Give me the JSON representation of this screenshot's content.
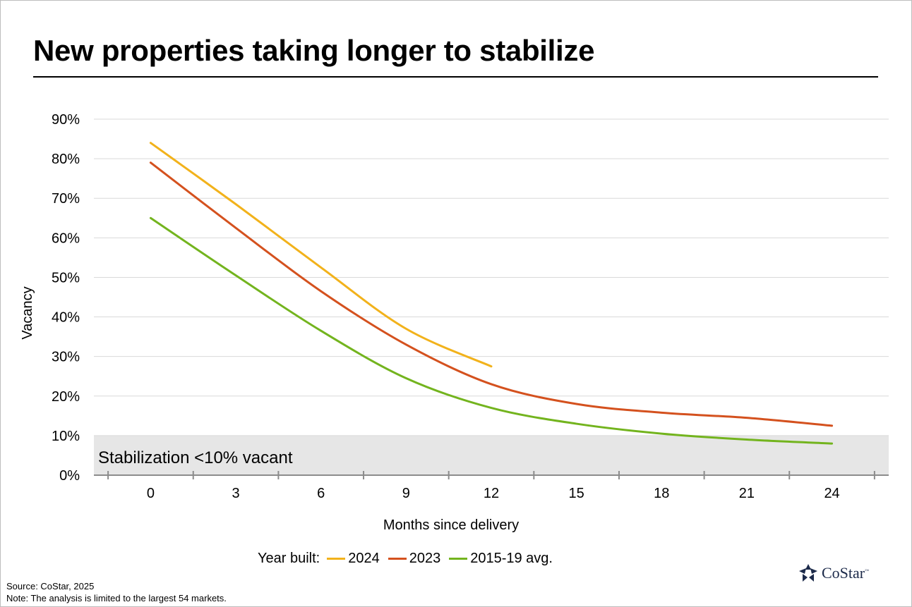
{
  "title": "New properties taking longer to stabilize",
  "legend_prefix": "Year built:",
  "source_line": "Source: CoStar, 2025",
  "note_line": "Note: The analysis is limited to the largest 54 markets.",
  "logo_text": "CoStar",
  "logo_tm": "™",
  "band_label": "Stabilization <10% vacant",
  "chart_data": {
    "type": "line",
    "title": "New properties taking longer to stabilize",
    "xlabel": "Months since delivery",
    "ylabel": "Vacancy",
    "xlim": [
      -2,
      26
    ],
    "ylim": [
      0,
      90
    ],
    "xticks": [
      0,
      3,
      6,
      9,
      12,
      15,
      18,
      21,
      24
    ],
    "yticks": [
      0,
      10,
      20,
      30,
      40,
      50,
      60,
      70,
      80,
      90
    ],
    "ytick_labels": [
      "0%",
      "10%",
      "20%",
      "30%",
      "40%",
      "50%",
      "60%",
      "70%",
      "80%",
      "90%"
    ],
    "grid": "horizontal",
    "legend_position": "bottom",
    "band": {
      "label": "Stabilization <10% vacant",
      "from": 0,
      "to": 10,
      "color": "#e6e6e6"
    },
    "series": [
      {
        "name": "2024",
        "color": "#f2b21b",
        "x": [
          0,
          3,
          6,
          9,
          12
        ],
        "y": [
          84,
          68.5,
          52.5,
          37,
          27.5
        ]
      },
      {
        "name": "2023",
        "color": "#d4511e",
        "x": [
          0,
          3,
          6,
          9,
          12,
          15,
          18,
          21,
          24
        ],
        "y": [
          79,
          62.5,
          46.5,
          33,
          23,
          18,
          15.8,
          14.5,
          12.5
        ]
      },
      {
        "name": "2015-19 avg.",
        "color": "#73b41e",
        "x": [
          0,
          3,
          6,
          9,
          12,
          15,
          18,
          21,
          24
        ],
        "y": [
          65,
          50.5,
          36.5,
          24.5,
          17,
          13,
          10.5,
          9,
          8
        ]
      }
    ]
  }
}
